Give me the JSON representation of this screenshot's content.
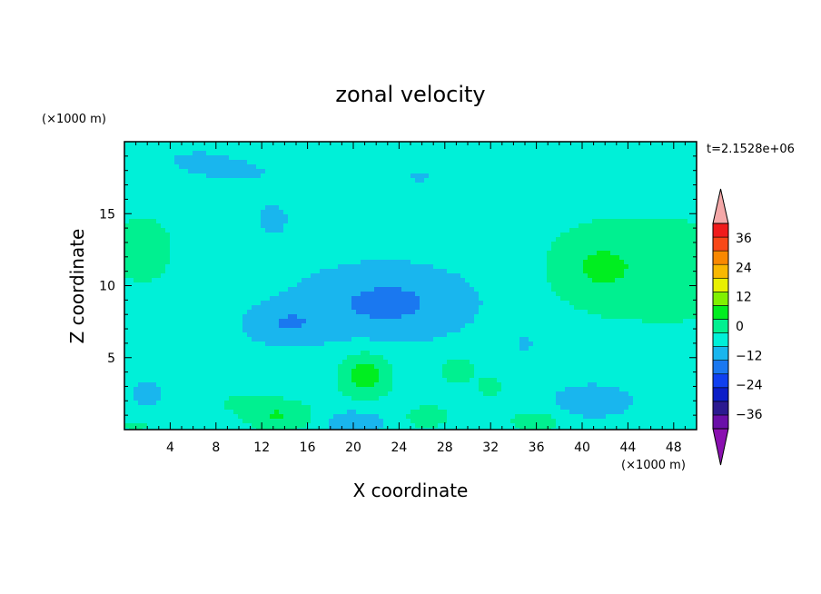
{
  "chart_data": {
    "type": "heatmap",
    "title": "zonal velocity",
    "xlabel": "X coordinate",
    "ylabel": "Z coordinate",
    "x_unit": "(×1000 m)",
    "y_unit": "(×1000 m)",
    "time_label": "t=2.1528e+06",
    "xlim": [
      0,
      50
    ],
    "ylim": [
      0,
      20
    ],
    "x_ticks": [
      4,
      8,
      12,
      16,
      20,
      24,
      28,
      32,
      36,
      40,
      44,
      48
    ],
    "y_ticks": [
      5,
      10,
      15
    ],
    "colorbar": {
      "levels": [
        -42,
        -36,
        -30,
        -24,
        -18,
        -12,
        -6,
        0,
        6,
        12,
        18,
        24,
        30,
        36,
        42
      ],
      "colors": [
        "#6a0fa8",
        "#2b1a90",
        "#0b1ec8",
        "#1040f0",
        "#1a78f0",
        "#19b6ee",
        "#00f0d8",
        "#00f090",
        "#00ee20",
        "#80f000",
        "#e8f000",
        "#f8b800",
        "#f88800",
        "#f84818",
        "#f01c1c"
      ],
      "under_color": "#8a10b0",
      "over_color": "#f4a8a8",
      "tick_values": [
        -36,
        -24,
        -12,
        0,
        12,
        24,
        36
      ],
      "tick_labels": [
        "−36",
        "−24",
        "−12",
        "0",
        "12",
        "24",
        "36"
      ]
    },
    "field_blobs": [
      {
        "x": 8,
        "y": 18.5,
        "sx": 10,
        "sy": 2.0,
        "a": -3.6
      },
      {
        "x": 26,
        "y": 17.5,
        "sx": 4,
        "sy": 1.8,
        "a": -3.0
      },
      {
        "x": 13,
        "y": 14.5,
        "sx": 3,
        "sy": 2.0,
        "a": -3.2
      },
      {
        "x": 23,
        "y": 8.8,
        "sx": 7.5,
        "sy": 2.6,
        "a": -10.5
      },
      {
        "x": 14,
        "y": 7.3,
        "sx": 3.5,
        "sy": 1.4,
        "a": -7.5
      },
      {
        "x": 20,
        "y": 0.5,
        "sx": 2.5,
        "sy": 0.8,
        "a": -9
      },
      {
        "x": 41,
        "y": 2.0,
        "sx": 3.5,
        "sy": 1.2,
        "a": -9
      },
      {
        "x": 2,
        "y": 2.5,
        "sx": 1.5,
        "sy": 0.8,
        "a": -6
      },
      {
        "x": 35,
        "y": 6.0,
        "sx": 0.6,
        "sy": 0.6,
        "a": -7
      },
      {
        "x": 1.5,
        "y": 12.5,
        "sx": 5,
        "sy": 4.5,
        "a": 4.5
      },
      {
        "x": 48,
        "y": 11,
        "sx": 9,
        "sy": 6,
        "a": 3.5
      },
      {
        "x": 41.5,
        "y": 11.3,
        "sx": 4.2,
        "sy": 2.4,
        "a": 8.0
      },
      {
        "x": 16,
        "y": 19.5,
        "sx": 6,
        "sy": 1.0,
        "a": 3.5
      },
      {
        "x": 21,
        "y": 3.8,
        "sx": 2.2,
        "sy": 1.6,
        "a": 12.5
      },
      {
        "x": 13.5,
        "y": 1.0,
        "sx": 3.0,
        "sy": 1.1,
        "a": 9.5
      },
      {
        "x": 29,
        "y": 4.2,
        "sx": 1.3,
        "sy": 0.9,
        "a": 7.5
      },
      {
        "x": 26.5,
        "y": 0.9,
        "sx": 2.0,
        "sy": 0.8,
        "a": 7.0
      },
      {
        "x": 36,
        "y": 0.6,
        "sx": 2.5,
        "sy": 0.8,
        "a": 6.0
      },
      {
        "x": 9,
        "y": 2.0,
        "sx": 3.0,
        "sy": 1.2,
        "a": 3.0
      },
      {
        "x": 32,
        "y": 3.0,
        "sx": 2.0,
        "sy": 1.5,
        "a": 3.5
      },
      {
        "x": 1,
        "y": 0.3,
        "sx": 1.2,
        "sy": 0.4,
        "a": 6.0
      }
    ],
    "field_base": -3.5,
    "field_slope_x": 0.02
  }
}
